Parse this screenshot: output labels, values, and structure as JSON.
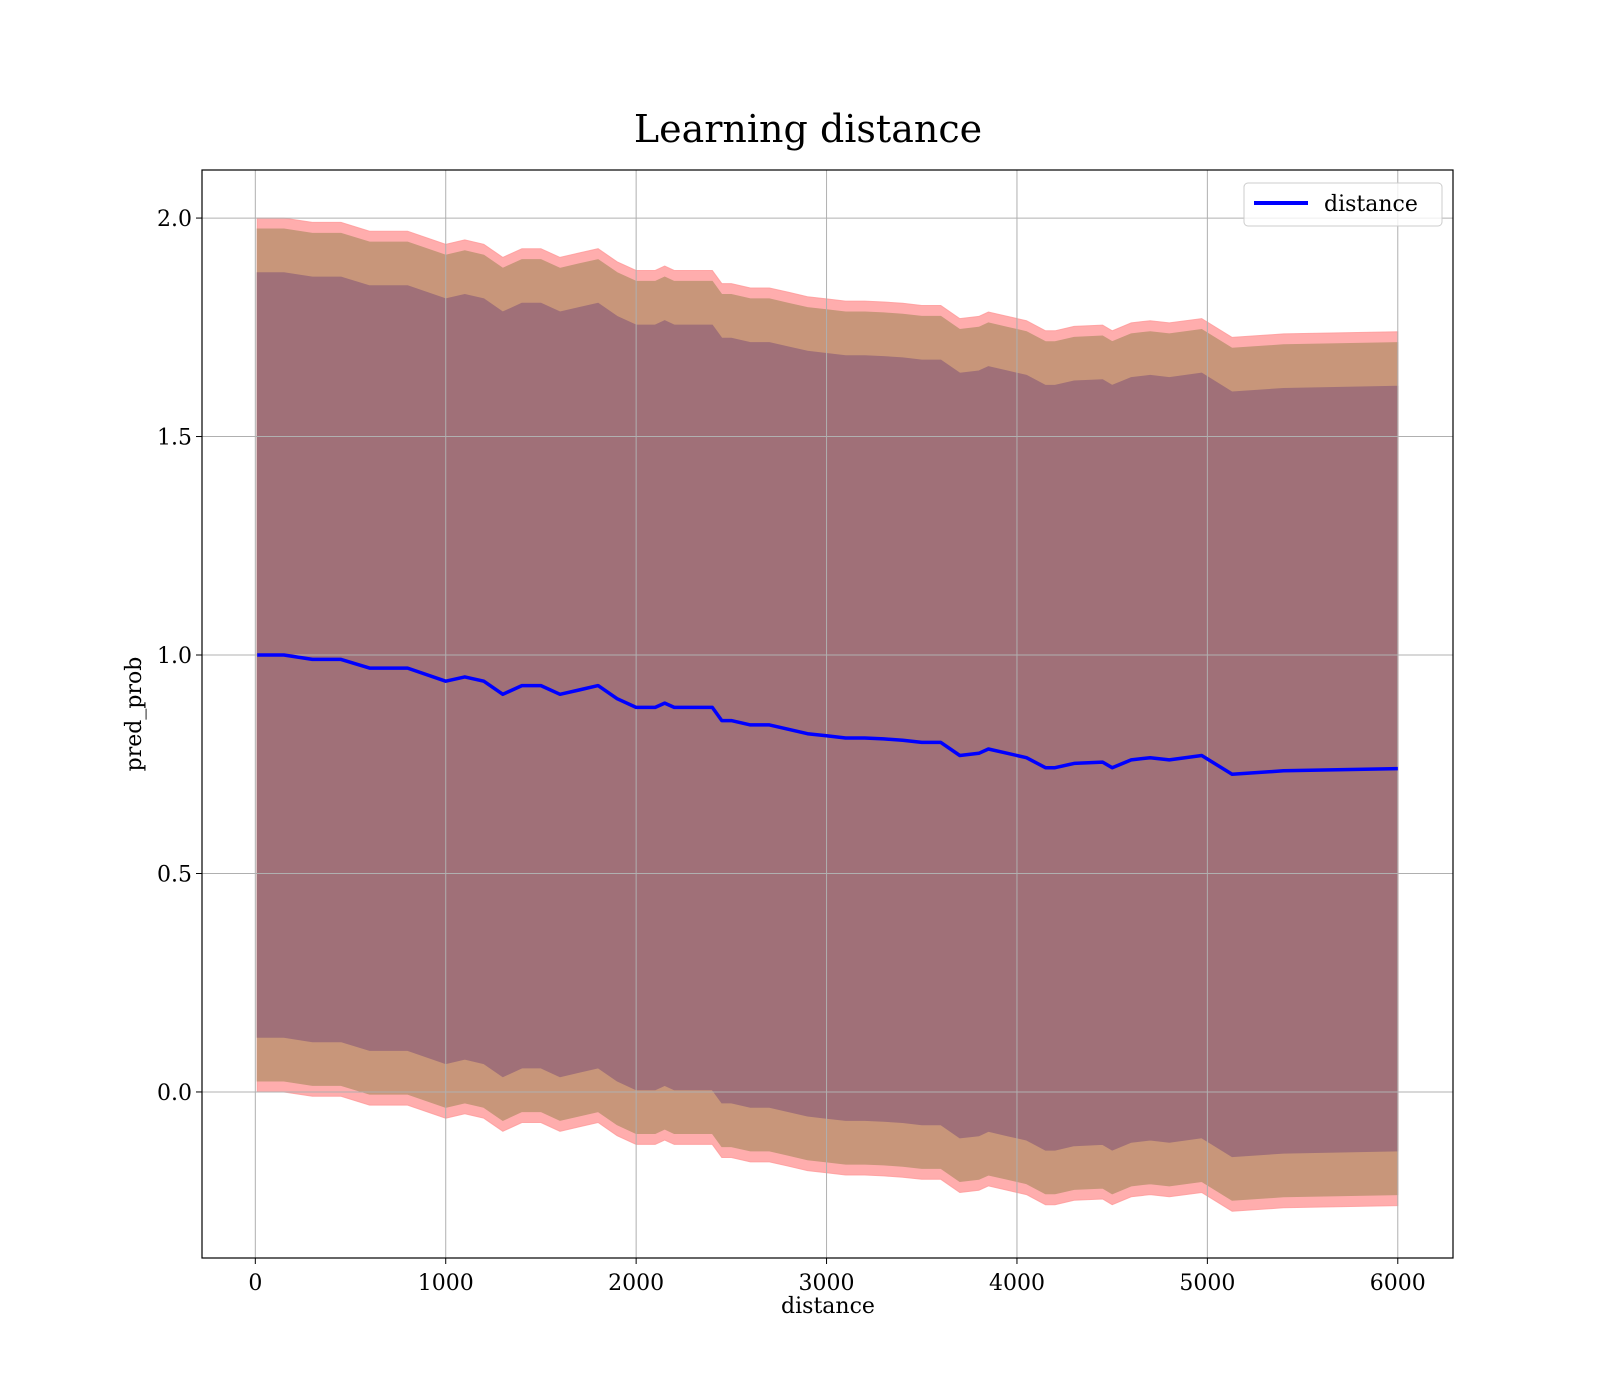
{
  "chart_data": {
    "type": "line",
    "title": "Learning distance",
    "xlabel": "distance",
    "ylabel": "pred_prob",
    "xlim": [
      -280,
      6290
    ],
    "ylim": [
      -0.38,
      2.11
    ],
    "xticks": [
      0,
      1000,
      2000,
      3000,
      4000,
      5000,
      6000
    ],
    "xtick_labels": [
      "0",
      "1000",
      "2000",
      "3000",
      "4000",
      "5000",
      "6000"
    ],
    "yticks": [
      0.0,
      0.5,
      1.0,
      1.5,
      2.0
    ],
    "ytick_labels": [
      "0.0",
      "0.5",
      "1.0",
      "1.5",
      "2.0"
    ],
    "grid": true,
    "legend_position": "top-right",
    "colors": {
      "line": "#0000ff",
      "outer_band": "#ff9999",
      "middle_band": "#c8967a",
      "inner_band": "#a07078"
    },
    "x": [
      10,
      150,
      300,
      450,
      600,
      800,
      1000,
      1100,
      1200,
      1300,
      1400,
      1500,
      1600,
      1700,
      1800,
      1900,
      2000,
      2100,
      2150,
      2200,
      2300,
      2400,
      2450,
      2500,
      2600,
      2700,
      2800,
      2900,
      3000,
      3100,
      3200,
      3300,
      3400,
      3500,
      3600,
      3700,
      3800,
      3850,
      3950,
      4050,
      4150,
      4200,
      4300,
      4450,
      4500,
      4600,
      4700,
      4800,
      4970,
      5130,
      5400,
      6000
    ],
    "series": [
      {
        "name": "distance",
        "values": [
          1.0,
          1.0,
          0.99,
          0.99,
          0.97,
          0.97,
          0.94,
          0.95,
          0.94,
          0.91,
          0.93,
          0.93,
          0.91,
          0.92,
          0.93,
          0.9,
          0.88,
          0.88,
          0.89,
          0.88,
          0.88,
          0.88,
          0.85,
          0.85,
          0.84,
          0.84,
          0.83,
          0.82,
          0.815,
          0.81,
          0.81,
          0.808,
          0.805,
          0.8,
          0.8,
          0.77,
          0.775,
          0.785,
          0.775,
          0.765,
          0.742,
          0.742,
          0.752,
          0.755,
          0.742,
          0.76,
          0.765,
          0.76,
          0.77,
          0.727,
          0.735,
          0.74
        ]
      }
    ]
  }
}
